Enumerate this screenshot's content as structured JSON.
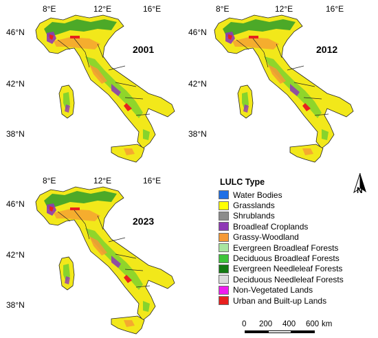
{
  "maps": [
    {
      "year": "2001",
      "lon_ticks": [
        "8°E",
        "12°E",
        "16°E"
      ],
      "lat_ticks": [
        "46°N",
        "42°N",
        "38°N"
      ]
    },
    {
      "year": "2012",
      "lon_ticks": [
        "8°E",
        "12°E",
        "16°E"
      ],
      "lat_ticks": [
        "46°N",
        "42°N",
        "38°N"
      ]
    },
    {
      "year": "2023",
      "lon_ticks": [
        "8°E",
        "12°E",
        "16°E"
      ],
      "lat_ticks": [
        "46°N",
        "42°N",
        "38°N"
      ]
    }
  ],
  "legend": {
    "title": "LULC Type",
    "items": [
      {
        "label": "Water Bodies",
        "color": "#1f6fe5"
      },
      {
        "label": "Grasslands",
        "color": "#ffff00"
      },
      {
        "label": "Shrublands",
        "color": "#8c8c8c"
      },
      {
        "label": "Broadleaf Croplands",
        "color": "#8e38b5"
      },
      {
        "label": "Grassy-Woodland",
        "color": "#f59a35"
      },
      {
        "label": "Evergreen Broadleaf Forests",
        "color": "#a8e6a0"
      },
      {
        "label": "Deciduous Broadleaf Forests",
        "color": "#3ec43a"
      },
      {
        "label": "Evergreen Needleleaf Forests",
        "color": "#147a12"
      },
      {
        "label": "Deciduous Needleleaf Forests",
        "color": "#dcdcdc"
      },
      {
        "label": "Non-Vegetated Lands",
        "color": "#ee1cee"
      },
      {
        "label": "Urban and Built-up Lands",
        "color": "#e8201e"
      }
    ]
  },
  "scale_bar": {
    "labels": [
      "0",
      "200",
      "400",
      "600"
    ],
    "unit": "km"
  },
  "north_arrow": {
    "label": "N"
  }
}
